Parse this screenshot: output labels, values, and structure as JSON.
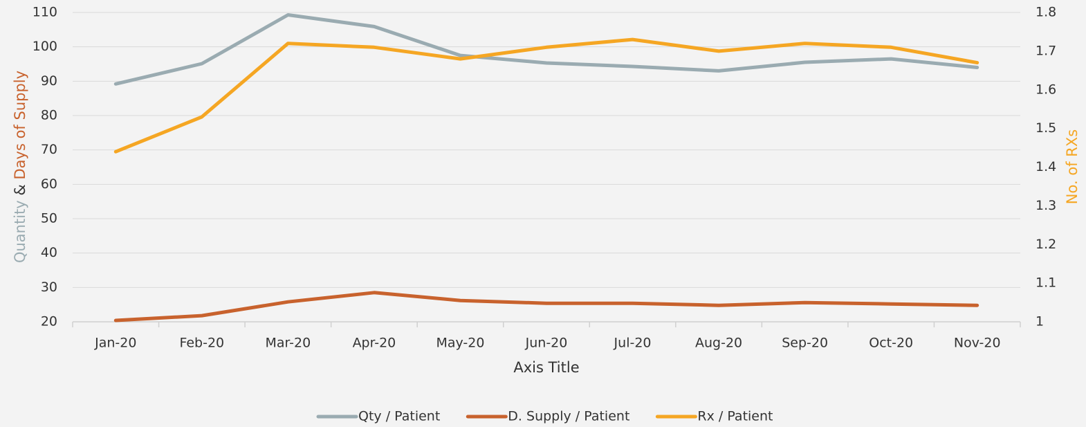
{
  "chart_data": {
    "type": "line",
    "x_label": "Axis Title",
    "y_label_parts": [
      {
        "text": "Quantity",
        "color": "#9aabb1"
      },
      {
        "text": "&",
        "color": "#333333"
      },
      {
        "text": "Days of Supply",
        "color": "#c8622d"
      }
    ],
    "y2_label": "No. of RXs",
    "y2_label_color": "#f5a623",
    "categories": [
      "Jan-20",
      "Feb-20",
      "Mar-20",
      "Apr-20",
      "May-20",
      "Jun-20",
      "Jul-20",
      "Aug-20",
      "Sep-20",
      "Oct-20",
      "Nov-20"
    ],
    "series": [
      {
        "name": "Qty / Patient",
        "color": "#9aabb1",
        "values": [
          89.2,
          95.1,
          109.3,
          105.9,
          97.5,
          95.3,
          94.3,
          93.0,
          95.5,
          96.5,
          94.0
        ]
      },
      {
        "name": "D. Supply / Patient",
        "color": "#c8622d",
        "values": [
          20.4,
          21.8,
          25.8,
          28.5,
          26.2,
          25.4,
          25.4,
          24.8,
          25.6,
          25.2,
          24.8
        ]
      },
      {
        "name": "Rx / Patient",
        "color": "#f5a623",
        "axis": "y2",
        "values": [
          1.44,
          1.53,
          1.72,
          1.71,
          1.68,
          1.71,
          1.73,
          1.7,
          1.72,
          1.71,
          1.67
        ]
      }
    ],
    "ylim": [
      20,
      110
    ],
    "yticks": [
      20,
      30,
      40,
      50,
      60,
      70,
      80,
      90,
      100,
      110
    ],
    "y2lim": [
      1,
      1.8
    ],
    "y2ticks": [
      1,
      1.1,
      1.2,
      1.3,
      1.4,
      1.5,
      1.6,
      1.7,
      1.8
    ],
    "grid": true,
    "legend": "bottom"
  }
}
